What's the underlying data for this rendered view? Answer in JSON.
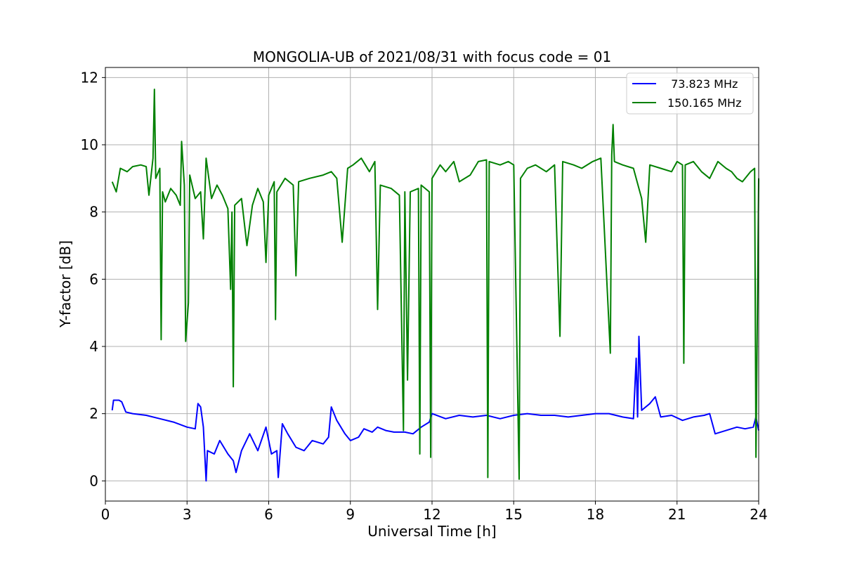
{
  "chart_data": {
    "type": "line",
    "title": "MONGOLIA-UB of 2021/08/31 with focus code = 01",
    "xlabel": "Universal Time [h]",
    "ylabel": "Y-factor [dB]",
    "xlim": [
      0,
      24
    ],
    "ylim": [
      -0.6,
      12.3
    ],
    "xticks": [
      0,
      3,
      6,
      9,
      12,
      15,
      18,
      21,
      24
    ],
    "yticks": [
      0,
      2,
      4,
      6,
      8,
      10,
      12
    ],
    "xtick_labels": [
      "0",
      "3",
      "6",
      "9",
      "12",
      "15",
      "18",
      "21",
      "24"
    ],
    "ytick_labels": [
      "0",
      "2",
      "4",
      "6",
      "8",
      "10",
      "12"
    ],
    "grid": true,
    "legend_position": "top-right",
    "series": [
      {
        "name": " 73.823 MHz",
        "color": "#0000ff",
        "points": [
          [
            0.25,
            2.1
          ],
          [
            0.3,
            2.4
          ],
          [
            0.5,
            2.4
          ],
          [
            0.6,
            2.35
          ],
          [
            0.75,
            2.05
          ],
          [
            1.0,
            2.0
          ],
          [
            1.5,
            1.95
          ],
          [
            2.0,
            1.85
          ],
          [
            2.5,
            1.75
          ],
          [
            3.0,
            1.6
          ],
          [
            3.3,
            1.55
          ],
          [
            3.4,
            2.3
          ],
          [
            3.5,
            2.2
          ],
          [
            3.6,
            1.6
          ],
          [
            3.7,
            0.0
          ],
          [
            3.75,
            0.9
          ],
          [
            4.0,
            0.8
          ],
          [
            4.2,
            1.2
          ],
          [
            4.5,
            0.8
          ],
          [
            4.7,
            0.6
          ],
          [
            4.8,
            0.25
          ],
          [
            5.0,
            0.9
          ],
          [
            5.3,
            1.4
          ],
          [
            5.6,
            0.9
          ],
          [
            5.9,
            1.6
          ],
          [
            6.1,
            0.8
          ],
          [
            6.3,
            0.9
          ],
          [
            6.35,
            0.1
          ],
          [
            6.5,
            1.7
          ],
          [
            6.7,
            1.4
          ],
          [
            7.0,
            1.0
          ],
          [
            7.3,
            0.9
          ],
          [
            7.6,
            1.2
          ],
          [
            8.0,
            1.1
          ],
          [
            8.2,
            1.3
          ],
          [
            8.3,
            2.2
          ],
          [
            8.5,
            1.8
          ],
          [
            8.8,
            1.4
          ],
          [
            9.0,
            1.2
          ],
          [
            9.3,
            1.3
          ],
          [
            9.5,
            1.55
          ],
          [
            9.8,
            1.45
          ],
          [
            10.0,
            1.6
          ],
          [
            10.3,
            1.5
          ],
          [
            10.6,
            1.45
          ],
          [
            11.0,
            1.45
          ],
          [
            11.3,
            1.4
          ],
          [
            11.6,
            1.6
          ],
          [
            11.9,
            1.75
          ],
          [
            12.0,
            2.0
          ],
          [
            12.5,
            1.85
          ],
          [
            13.0,
            1.95
          ],
          [
            13.5,
            1.9
          ],
          [
            14.0,
            1.95
          ],
          [
            14.5,
            1.85
          ],
          [
            15.0,
            1.95
          ],
          [
            15.5,
            2.0
          ],
          [
            16.0,
            1.95
          ],
          [
            16.5,
            1.95
          ],
          [
            17.0,
            1.9
          ],
          [
            17.5,
            1.95
          ],
          [
            18.0,
            2.0
          ],
          [
            18.5,
            2.0
          ],
          [
            19.0,
            1.9
          ],
          [
            19.4,
            1.85
          ],
          [
            19.5,
            3.65
          ],
          [
            19.55,
            1.9
          ],
          [
            19.6,
            4.3
          ],
          [
            19.7,
            2.1
          ],
          [
            20.0,
            2.3
          ],
          [
            20.2,
            2.5
          ],
          [
            20.4,
            1.9
          ],
          [
            20.8,
            1.95
          ],
          [
            21.2,
            1.8
          ],
          [
            21.6,
            1.9
          ],
          [
            22.0,
            1.95
          ],
          [
            22.2,
            2.0
          ],
          [
            22.4,
            1.4
          ],
          [
            22.8,
            1.5
          ],
          [
            23.2,
            1.6
          ],
          [
            23.5,
            1.55
          ],
          [
            23.8,
            1.6
          ],
          [
            23.9,
            1.9
          ],
          [
            24.0,
            1.5
          ]
        ]
      },
      {
        "name": "150.165 MHz",
        "color": "#008000",
        "points": [
          [
            0.25,
            8.9
          ],
          [
            0.4,
            8.6
          ],
          [
            0.55,
            9.3
          ],
          [
            0.8,
            9.2
          ],
          [
            1.0,
            9.35
          ],
          [
            1.3,
            9.4
          ],
          [
            1.5,
            9.35
          ],
          [
            1.6,
            8.5
          ],
          [
            1.75,
            9.6
          ],
          [
            1.8,
            11.65
          ],
          [
            1.85,
            9.0
          ],
          [
            2.0,
            9.3
          ],
          [
            2.05,
            4.2
          ],
          [
            2.1,
            8.6
          ],
          [
            2.2,
            8.3
          ],
          [
            2.4,
            8.7
          ],
          [
            2.6,
            8.5
          ],
          [
            2.75,
            8.2
          ],
          [
            2.8,
            10.1
          ],
          [
            2.9,
            8.8
          ],
          [
            2.95,
            4.15
          ],
          [
            3.05,
            5.3
          ],
          [
            3.1,
            9.1
          ],
          [
            3.3,
            8.4
          ],
          [
            3.5,
            8.6
          ],
          [
            3.6,
            7.2
          ],
          [
            3.7,
            9.6
          ],
          [
            3.9,
            8.4
          ],
          [
            4.1,
            8.8
          ],
          [
            4.3,
            8.5
          ],
          [
            4.5,
            8.1
          ],
          [
            4.6,
            5.7
          ],
          [
            4.65,
            8.0
          ],
          [
            4.7,
            2.8
          ],
          [
            4.75,
            8.2
          ],
          [
            5.0,
            8.4
          ],
          [
            5.2,
            7.0
          ],
          [
            5.4,
            8.2
          ],
          [
            5.6,
            8.7
          ],
          [
            5.8,
            8.3
          ],
          [
            5.9,
            6.5
          ],
          [
            6.0,
            8.5
          ],
          [
            6.2,
            8.9
          ],
          [
            6.25,
            4.8
          ],
          [
            6.3,
            8.6
          ],
          [
            6.6,
            9.0
          ],
          [
            6.9,
            8.8
          ],
          [
            7.0,
            6.1
          ],
          [
            7.1,
            8.9
          ],
          [
            7.5,
            9.0
          ],
          [
            8.0,
            9.1
          ],
          [
            8.3,
            9.2
          ],
          [
            8.5,
            9.0
          ],
          [
            8.7,
            7.1
          ],
          [
            8.9,
            9.3
          ],
          [
            9.1,
            9.4
          ],
          [
            9.4,
            9.6
          ],
          [
            9.7,
            9.2
          ],
          [
            9.9,
            9.5
          ],
          [
            10.0,
            5.1
          ],
          [
            10.1,
            8.8
          ],
          [
            10.5,
            8.7
          ],
          [
            10.8,
            8.5
          ],
          [
            10.95,
            1.5
          ],
          [
            11.0,
            8.6
          ],
          [
            11.1,
            3.0
          ],
          [
            11.2,
            8.6
          ],
          [
            11.5,
            8.7
          ],
          [
            11.55,
            0.8
          ],
          [
            11.6,
            8.8
          ],
          [
            11.9,
            8.6
          ],
          [
            11.95,
            0.7
          ],
          [
            12.0,
            9.0
          ],
          [
            12.3,
            9.4
          ],
          [
            12.5,
            9.2
          ],
          [
            12.8,
            9.5
          ],
          [
            13.0,
            8.9
          ],
          [
            13.4,
            9.1
          ],
          [
            13.7,
            9.5
          ],
          [
            14.0,
            9.55
          ],
          [
            14.05,
            0.1
          ],
          [
            14.1,
            9.5
          ],
          [
            14.5,
            9.4
          ],
          [
            14.8,
            9.5
          ],
          [
            15.0,
            9.4
          ],
          [
            15.2,
            0.05
          ],
          [
            15.25,
            9.0
          ],
          [
            15.5,
            9.3
          ],
          [
            15.8,
            9.4
          ],
          [
            16.2,
            9.2
          ],
          [
            16.5,
            9.4
          ],
          [
            16.7,
            4.3
          ],
          [
            16.8,
            9.5
          ],
          [
            17.2,
            9.4
          ],
          [
            17.5,
            9.3
          ],
          [
            17.9,
            9.5
          ],
          [
            18.2,
            9.6
          ],
          [
            18.55,
            3.8
          ],
          [
            18.6,
            9.7
          ],
          [
            18.65,
            10.6
          ],
          [
            18.7,
            9.5
          ],
          [
            19.0,
            9.4
          ],
          [
            19.4,
            9.3
          ],
          [
            19.7,
            8.4
          ],
          [
            19.85,
            7.1
          ],
          [
            20.0,
            9.4
          ],
          [
            20.4,
            9.3
          ],
          [
            20.8,
            9.2
          ],
          [
            21.0,
            9.5
          ],
          [
            21.2,
            9.4
          ],
          [
            21.25,
            3.5
          ],
          [
            21.3,
            9.4
          ],
          [
            21.6,
            9.5
          ],
          [
            21.9,
            9.2
          ],
          [
            22.2,
            9.0
          ],
          [
            22.5,
            9.5
          ],
          [
            22.8,
            9.3
          ],
          [
            23.0,
            9.2
          ],
          [
            23.2,
            9.0
          ],
          [
            23.4,
            8.9
          ],
          [
            23.7,
            9.2
          ],
          [
            23.85,
            9.3
          ],
          [
            23.9,
            0.7
          ],
          [
            24.0,
            9.0
          ]
        ]
      }
    ]
  }
}
